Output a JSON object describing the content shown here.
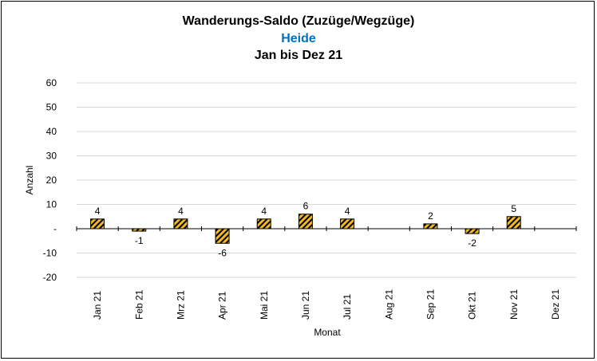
{
  "chart_data": {
    "type": "bar",
    "title": "Wanderungs-Saldo (Zuzüge/Wegzüge)",
    "subtitle": "Heide",
    "period": "Jan bis Dez 21",
    "xlabel": "Monat",
    "ylabel": "Anzahl",
    "ylim": [
      -20,
      60
    ],
    "yticks": [
      -20,
      -10,
      0,
      10,
      20,
      30,
      40,
      50,
      60
    ],
    "ytick_labels": [
      "-20",
      "-10",
      "-",
      "10",
      "20",
      "30",
      "40",
      "50",
      "60"
    ],
    "categories": [
      "Jan 21",
      "Feb 21",
      "Mrz 21",
      "Apr 21",
      "Mai 21",
      "Jun 21",
      "Jul 21",
      "Aug 21",
      "Sep 21",
      "Okt 21",
      "Nov 21",
      "Dez 21"
    ],
    "values": [
      4,
      -1,
      4,
      -6,
      4,
      6,
      4,
      null,
      2,
      -2,
      5,
      null
    ],
    "data_labels": [
      "4",
      "-1",
      "4",
      "-6",
      "4",
      "6",
      "4",
      "",
      "2",
      "-2",
      "5",
      ""
    ],
    "bar_fill": "#f2b81f",
    "bar_hatch": "#000000",
    "grid": true,
    "grid_color": "#d9d9d9",
    "subtitle_color": "#0070c0"
  }
}
